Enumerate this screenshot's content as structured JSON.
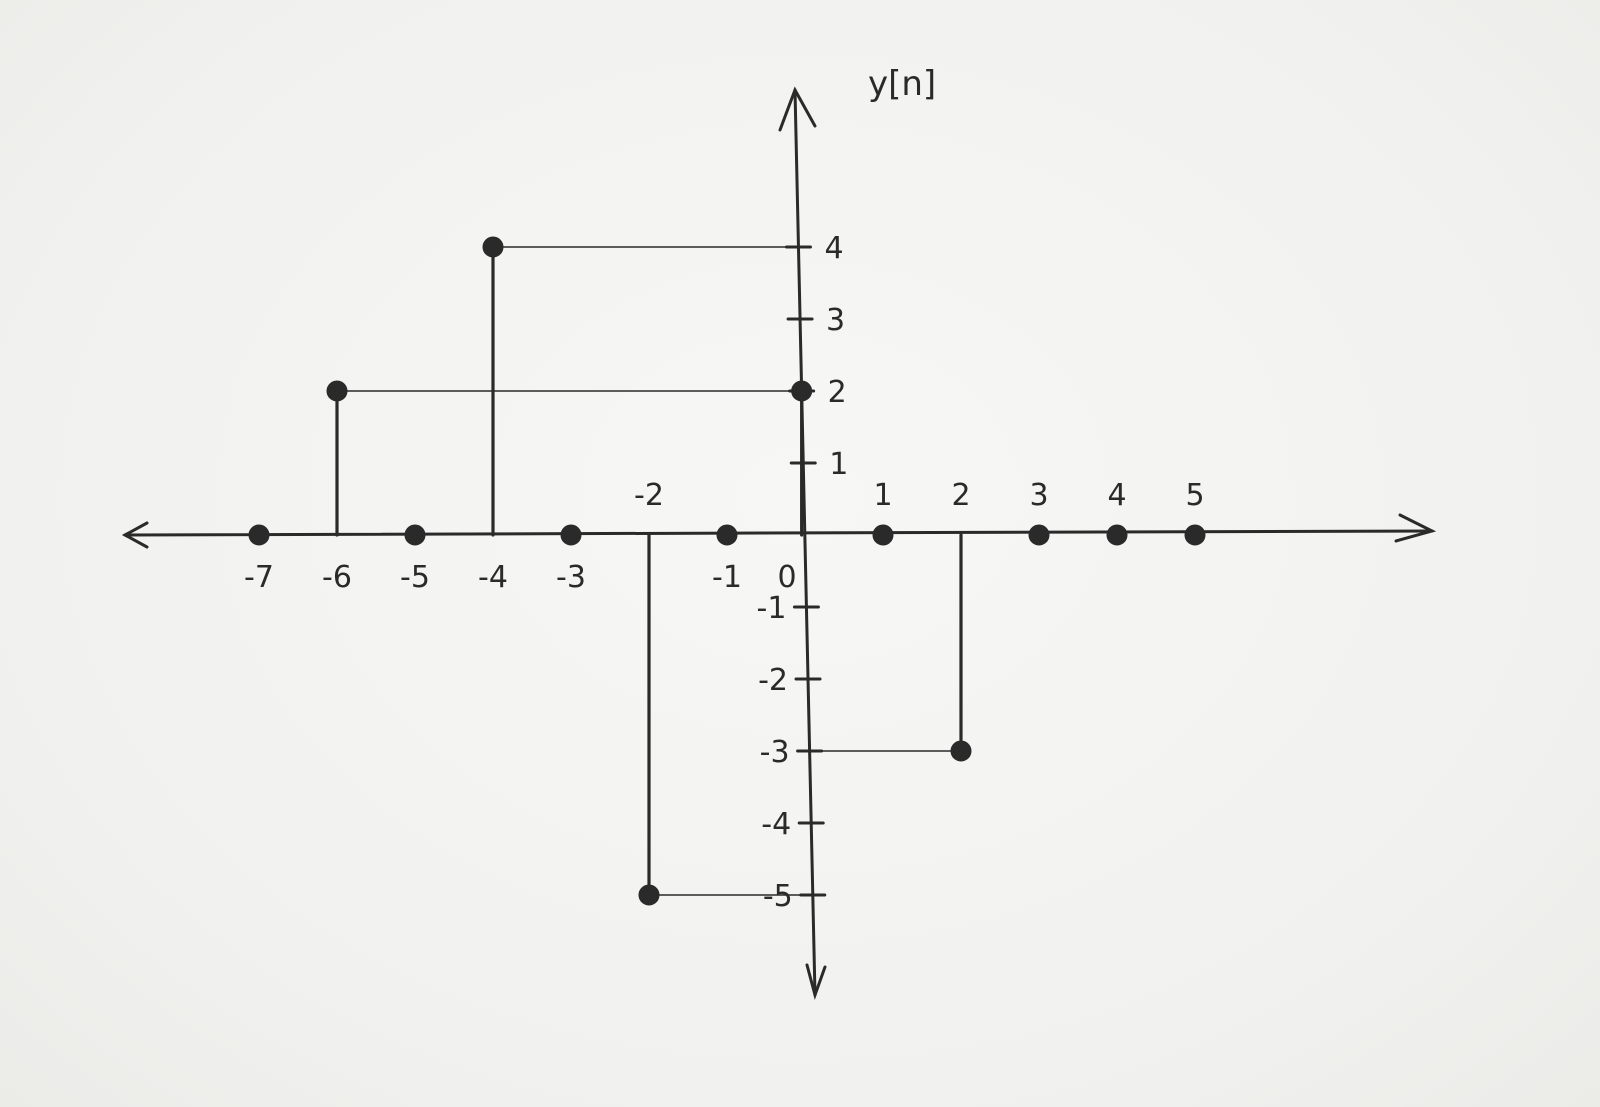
{
  "chart_data": {
    "type": "stem",
    "ylabel": "y[n]",
    "xlabel": "",
    "title": "",
    "xlim": [
      -8,
      8
    ],
    "ylim": [
      -6,
      5.5
    ],
    "x_ticks": [
      {
        "value": -7,
        "label": "-7",
        "pos": "below"
      },
      {
        "value": -6,
        "label": "-6",
        "pos": "below"
      },
      {
        "value": -5,
        "label": "-5",
        "pos": "below"
      },
      {
        "value": -4,
        "label": "-4",
        "pos": "below"
      },
      {
        "value": -3,
        "label": "-3",
        "pos": "below"
      },
      {
        "value": -2,
        "label": "-2",
        "pos": "above"
      },
      {
        "value": -1,
        "label": "-1",
        "pos": "below"
      },
      {
        "value": 0,
        "label": "0",
        "pos": "below"
      },
      {
        "value": 1,
        "label": "1",
        "pos": "above"
      },
      {
        "value": 2,
        "label": "2",
        "pos": "above"
      },
      {
        "value": 3,
        "label": "3",
        "pos": "above"
      },
      {
        "value": 4,
        "label": "4",
        "pos": "above"
      },
      {
        "value": 5,
        "label": "5",
        "pos": "above"
      }
    ],
    "y_ticks": [
      {
        "value": 4,
        "label": "4"
      },
      {
        "value": 3,
        "label": "3"
      },
      {
        "value": 2,
        "label": "2"
      },
      {
        "value": 1,
        "label": "1"
      },
      {
        "value": -1,
        "label": "-1"
      },
      {
        "value": -2,
        "label": "-2"
      },
      {
        "value": -3,
        "label": "-3"
      },
      {
        "value": -4,
        "label": "-4"
      },
      {
        "value": -5,
        "label": "-5"
      }
    ],
    "points": [
      {
        "n": -7,
        "y": 0
      },
      {
        "n": -6,
        "y": 2
      },
      {
        "n": -5,
        "y": 0
      },
      {
        "n": -4,
        "y": 4
      },
      {
        "n": -3,
        "y": 0
      },
      {
        "n": -2,
        "y": -5
      },
      {
        "n": -1,
        "y": 0
      },
      {
        "n": 0,
        "y": 2
      },
      {
        "n": 1,
        "y": 0
      },
      {
        "n": 2,
        "y": -3
      },
      {
        "n": 3,
        "y": 0
      },
      {
        "n": 4,
        "y": 0
      },
      {
        "n": 5,
        "y": 0
      }
    ],
    "guide_lines": true,
    "grid": false,
    "legend": "none",
    "colors": {
      "ink": "#2a2a2a",
      "paper": "#f3f3f1"
    }
  }
}
